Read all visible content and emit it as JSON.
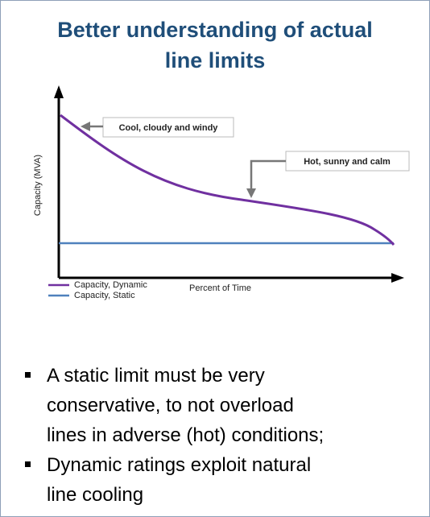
{
  "header": {
    "title_lines": [
      "Better understanding of actual",
      "line limits"
    ]
  },
  "figure": {
    "y_axis_label": "Capacity (MVA)",
    "x_axis_label": "Percent of Time",
    "annotations": [
      "Cool, cloudy and windy",
      "Hot, sunny and calm"
    ],
    "legend": [
      {
        "name": "Capacity, Dynamic",
        "color": "#7030a0"
      },
      {
        "name": "Capacity, Static",
        "color": "#4f81bd"
      }
    ]
  },
  "bullets": [
    {
      "lines": [
        "A static limit must be very",
        "conservative, to not overload",
        "lines in adverse (hot) conditions;"
      ]
    },
    {
      "lines": [
        "Dynamic ratings exploit natural",
        "line cooling"
      ]
    }
  ]
}
